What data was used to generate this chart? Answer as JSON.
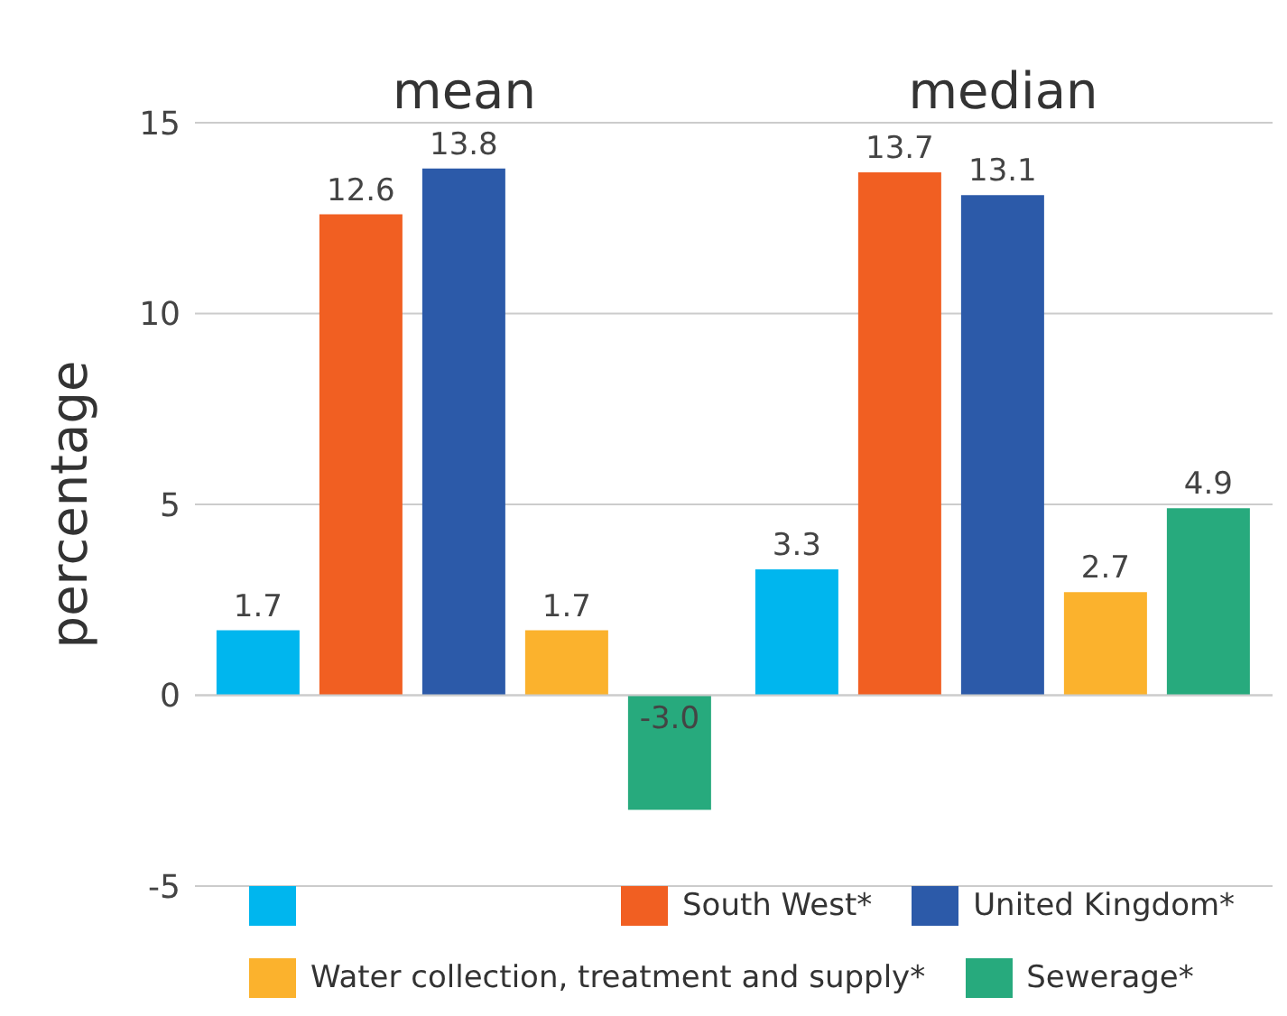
{
  "chart_data": {
    "type": "bar",
    "ylabel": "percentage",
    "categories": [
      "mean",
      "median"
    ],
    "series": [
      {
        "color": "#00b6ee",
        "values": [
          1.7,
          3.3
        ],
        "value_labels": [
          "1.7",
          "3.3"
        ]
      },
      {
        "name": "South West*",
        "color": "#f15f22",
        "values": [
          12.6,
          13.7
        ],
        "value_labels": [
          "12.6",
          "13.7"
        ]
      },
      {
        "name": "United Kingdom*",
        "color": "#2c5aa9",
        "values": [
          13.8,
          13.1
        ],
        "value_labels": [
          "13.8",
          "13.1"
        ]
      },
      {
        "name": "Water collection, treatment and supply*",
        "color": "#fbb22d",
        "values": [
          1.7,
          2.7
        ],
        "value_labels": [
          "1.7",
          "2.7"
        ]
      },
      {
        "name": "Sewerage*",
        "color": "#27aa7d",
        "values": [
          -3.0,
          4.9
        ],
        "value_labels": [
          "-3.0",
          "4.9"
        ]
      }
    ],
    "ylim": [
      -5,
      15
    ],
    "yticks": [
      -5,
      0,
      5,
      10,
      15
    ],
    "grid": "y",
    "legend": "bottom"
  }
}
